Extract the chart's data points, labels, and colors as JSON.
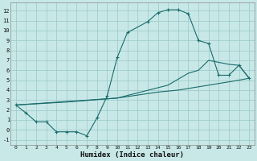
{
  "xlabel": "Humidex (Indice chaleur)",
  "bg_color": "#c8e8e8",
  "grid_color": "#a0cccc",
  "line_color": "#1a6b6b",
  "xlim": [
    -0.5,
    23.5
  ],
  "ylim": [
    -1.5,
    12.8
  ],
  "yticks": [
    -1,
    0,
    1,
    2,
    3,
    4,
    5,
    6,
    7,
    8,
    9,
    10,
    11,
    12
  ],
  "xticks": [
    0,
    1,
    2,
    3,
    4,
    5,
    6,
    7,
    8,
    9,
    10,
    11,
    12,
    13,
    14,
    15,
    16,
    17,
    18,
    19,
    20,
    21,
    22,
    23
  ],
  "series1_x": [
    0,
    1,
    2,
    3,
    4,
    5,
    6,
    7,
    8,
    9,
    10,
    11,
    13,
    14,
    15,
    16,
    17,
    18,
    19,
    20,
    21,
    22,
    23
  ],
  "series1_y": [
    2.5,
    1.7,
    0.8,
    0.8,
    -0.2,
    -0.2,
    -0.2,
    -0.6,
    1.2,
    3.4,
    7.3,
    9.8,
    10.9,
    11.8,
    12.1,
    12.1,
    11.7,
    9.0,
    8.7,
    5.5,
    5.5,
    6.5,
    5.2
  ],
  "series2_x": [
    0,
    10,
    15,
    17,
    18,
    19,
    20,
    21,
    22,
    23
  ],
  "series2_y": [
    2.5,
    3.2,
    4.5,
    5.7,
    6.0,
    7.0,
    6.8,
    6.6,
    6.5,
    5.2
  ],
  "series3_x": [
    0,
    5,
    10,
    14,
    16,
    19,
    22,
    23
  ],
  "series3_y": [
    2.5,
    2.8,
    3.2,
    3.8,
    4.0,
    4.5,
    5.0,
    5.2
  ]
}
